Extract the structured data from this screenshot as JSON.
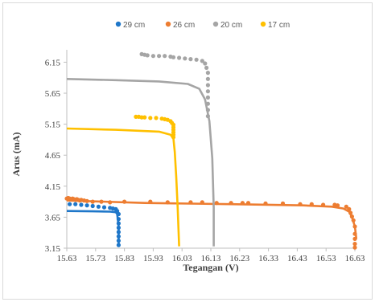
{
  "chart_data": {
    "type": "scatter",
    "title": "",
    "xlabel": "Tegangan (V)",
    "ylabel": "Arus  (mA)",
    "xlim": [
      15.63,
      16.63
    ],
    "ylim": [
      3.15,
      6.35
    ],
    "x_ticks": [
      "15.63",
      "15.73",
      "15.83",
      "15.93",
      "16.03",
      "16.13",
      "16.23",
      "16.33",
      "16.43",
      "16.53",
      "16.63"
    ],
    "y_ticks": [
      "3.15",
      "3.65",
      "4.15",
      "4.65",
      "5.15",
      "5.65",
      "6.15"
    ],
    "grid": false,
    "legend_position": "top",
    "series": [
      {
        "name": "29 cm",
        "color": "#1f77c9",
        "points": [
          [
            15.64,
            3.86
          ],
          [
            15.66,
            3.86
          ],
          [
            15.68,
            3.85
          ],
          [
            15.7,
            3.84
          ],
          [
            15.72,
            3.83
          ],
          [
            15.74,
            3.82
          ],
          [
            15.76,
            3.81
          ],
          [
            15.78,
            3.8
          ],
          [
            15.79,
            3.79
          ],
          [
            15.8,
            3.78
          ],
          [
            15.805,
            3.75
          ],
          [
            15.81,
            3.7
          ],
          [
            15.81,
            3.62
          ],
          [
            15.81,
            3.55
          ],
          [
            15.81,
            3.48
          ],
          [
            15.81,
            3.41
          ],
          [
            15.81,
            3.34
          ],
          [
            15.81,
            3.27
          ],
          [
            15.81,
            3.2
          ]
        ],
        "fit": [
          [
            15.63,
            3.75
          ],
          [
            15.72,
            3.745
          ],
          [
            15.78,
            3.74
          ],
          [
            15.8,
            3.73
          ],
          [
            15.805,
            3.7
          ],
          [
            15.81,
            3.5
          ],
          [
            15.81,
            3.18
          ]
        ]
      },
      {
        "name": "26 cm",
        "color": "#ed7d31",
        "points": [
          [
            15.63,
            3.95
          ],
          [
            15.635,
            3.96
          ],
          [
            15.64,
            3.95
          ],
          [
            15.645,
            3.94
          ],
          [
            15.65,
            3.95
          ],
          [
            15.655,
            3.94
          ],
          [
            15.66,
            3.93
          ],
          [
            15.665,
            3.94
          ],
          [
            15.67,
            3.93
          ],
          [
            15.675,
            3.92
          ],
          [
            15.68,
            3.93
          ],
          [
            15.69,
            3.92
          ],
          [
            15.7,
            3.91
          ],
          [
            15.72,
            3.9
          ],
          [
            15.75,
            3.9
          ],
          [
            15.78,
            3.89
          ],
          [
            15.83,
            3.9
          ],
          [
            15.92,
            3.9
          ],
          [
            15.98,
            3.89
          ],
          [
            16.06,
            3.89
          ],
          [
            16.1,
            3.89
          ],
          [
            16.15,
            3.88
          ],
          [
            16.2,
            3.88
          ],
          [
            16.24,
            3.88
          ],
          [
            16.26,
            3.88
          ],
          [
            16.32,
            3.87
          ],
          [
            16.38,
            3.87
          ],
          [
            16.44,
            3.86
          ],
          [
            16.48,
            3.86
          ],
          [
            16.52,
            3.85
          ],
          [
            16.56,
            3.85
          ],
          [
            16.57,
            3.84
          ],
          [
            16.6,
            3.82
          ],
          [
            16.61,
            3.78
          ],
          [
            16.615,
            3.72
          ],
          [
            16.62,
            3.66
          ],
          [
            16.625,
            3.6
          ],
          [
            16.63,
            3.5
          ],
          [
            16.63,
            3.38
          ],
          [
            16.63,
            3.3
          ],
          [
            16.63,
            3.22
          ],
          [
            16.63,
            3.16
          ]
        ],
        "fit": [
          [
            15.63,
            3.92
          ],
          [
            15.9,
            3.88
          ],
          [
            16.2,
            3.86
          ],
          [
            16.45,
            3.84
          ],
          [
            16.55,
            3.82
          ],
          [
            16.59,
            3.79
          ],
          [
            16.61,
            3.74
          ],
          [
            16.62,
            3.65
          ],
          [
            16.63,
            3.5
          ],
          [
            16.635,
            3.3
          ]
        ]
      },
      {
        "name": "20 cm",
        "color": "#a5a5a5",
        "points": [
          [
            15.89,
            6.28
          ],
          [
            15.9,
            6.27
          ],
          [
            15.91,
            6.26
          ],
          [
            15.93,
            6.25
          ],
          [
            15.95,
            6.25
          ],
          [
            15.97,
            6.25
          ],
          [
            15.99,
            6.24
          ],
          [
            16.0,
            6.23
          ],
          [
            16.02,
            6.22
          ],
          [
            16.04,
            6.21
          ],
          [
            16.06,
            6.2
          ],
          [
            16.08,
            6.19
          ],
          [
            16.1,
            6.17
          ],
          [
            16.11,
            6.13
          ],
          [
            16.115,
            6.06
          ],
          [
            16.12,
            5.98
          ],
          [
            16.12,
            5.88
          ],
          [
            16.12,
            5.78
          ],
          [
            16.12,
            5.68
          ],
          [
            16.12,
            5.58
          ],
          [
            16.12,
            5.48
          ],
          [
            16.12,
            5.38
          ],
          [
            16.12,
            5.28
          ]
        ],
        "fit": [
          [
            15.63,
            5.88
          ],
          [
            15.8,
            5.86
          ],
          [
            15.95,
            5.84
          ],
          [
            16.05,
            5.8
          ],
          [
            16.09,
            5.72
          ],
          [
            16.11,
            5.55
          ],
          [
            16.125,
            5.2
          ],
          [
            16.135,
            4.6
          ],
          [
            16.14,
            3.8
          ],
          [
            16.14,
            3.18
          ]
        ]
      },
      {
        "name": "17 cm",
        "color": "#ffc000",
        "points": [
          [
            15.87,
            5.27
          ],
          [
            15.88,
            5.27
          ],
          [
            15.89,
            5.26
          ],
          [
            15.9,
            5.26
          ],
          [
            15.92,
            5.25
          ],
          [
            15.94,
            5.25
          ],
          [
            15.96,
            5.24
          ],
          [
            15.97,
            5.23
          ],
          [
            15.98,
            5.22
          ],
          [
            15.99,
            5.2
          ],
          [
            15.995,
            5.17
          ],
          [
            16.0,
            5.14
          ],
          [
            16.0,
            5.1
          ],
          [
            16.0,
            5.06
          ],
          [
            16.0,
            5.02
          ],
          [
            16.0,
            4.98
          ],
          [
            16.0,
            4.94
          ]
        ],
        "fit": [
          [
            15.63,
            5.08
          ],
          [
            15.8,
            5.06
          ],
          [
            15.95,
            5.03
          ],
          [
            15.99,
            4.98
          ],
          [
            16.0,
            4.92
          ],
          [
            16.005,
            4.7
          ],
          [
            16.01,
            4.3
          ],
          [
            16.015,
            3.8
          ],
          [
            16.02,
            3.18
          ]
        ]
      }
    ]
  }
}
